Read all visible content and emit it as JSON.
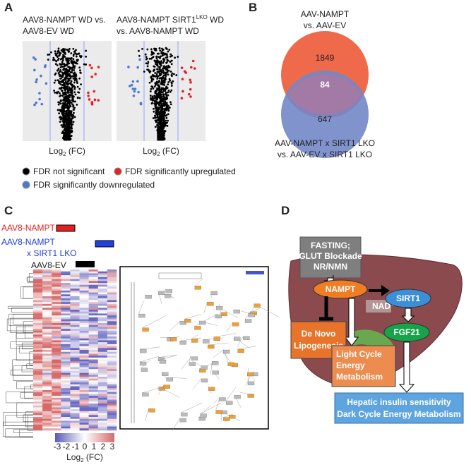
{
  "panel_a": {
    "label": "A",
    "plot1_title": [
      "AAV8-NAMPT WD vs.",
      "AAV8-EV WD"
    ],
    "plot2_title": {
      "line1_main": "AAV8-NAMPT SIRT1",
      "line1_sup": "LKO",
      "line1_rest": " WD",
      "line2": "vs. AAV8-NAMPT WD"
    },
    "x_label": {
      "main": "Log",
      "sub": "2",
      "rest": " (FC)"
    },
    "legend": [
      "FDR not significant",
      "FDR significantly upregulated",
      "FDR significantly downregulated"
    ]
  },
  "panel_b": {
    "label": "B",
    "top_label": [
      "AAV-NAMPT",
      "vs. AAV-EV"
    ],
    "counts": {
      "top_only": 1849,
      "overlap": 84,
      "bottom_only": 647
    },
    "bottom_label": [
      "AAV-NAMPT x SIRT1 LKO",
      "vs.  AAV-EV x SIRT1 LKO"
    ]
  },
  "panel_c": {
    "label": "C",
    "groups": [
      "AAV8-NAMPT",
      "AAV8-NAMPT",
      "x SIRT1 LKO",
      "AAV8-EV"
    ],
    "colorbar_ticks": [
      -3,
      -2,
      -1,
      0,
      1,
      2,
      3
    ],
    "colorbar_label": {
      "main": "Log",
      "sub": "2",
      "rest": " (FC)"
    }
  },
  "panel_d": {
    "label": "D",
    "inputs": [
      "FASTING;",
      "GLUT Blockade",
      "NR/NMN"
    ],
    "nampt": "NAMPT",
    "nad": {
      "main": "NAD",
      "sup": "+"
    },
    "sirt1": "SIRT1",
    "fgf21": "FGF21",
    "lipogenesis": [
      "De Novo",
      "Lipogenesis"
    ],
    "light_cycle": [
      "Light Cycle",
      "Energy",
      "Metabolism"
    ],
    "outcome": [
      "Hepatic insulin sensitivity",
      "Dark Cycle Energy Metabolism"
    ]
  }
}
